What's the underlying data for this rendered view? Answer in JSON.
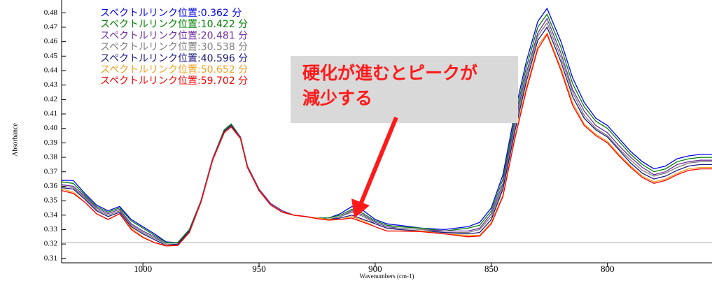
{
  "chart_data": {
    "type": "line",
    "xlabel": "Wavenumbers (cm-1)",
    "ylabel": "Absorbance",
    "xlim": [
      1035,
      755
    ],
    "ylim": [
      0.307,
      0.484
    ],
    "xticks": [
      1000,
      950,
      900,
      850,
      800
    ],
    "yticks": [
      0.31,
      0.32,
      0.33,
      0.34,
      0.35,
      0.36,
      0.37,
      0.38,
      0.39,
      {
        "value": 0.4,
        "label": "0.40"
      },
      0.41,
      0.42,
      0.43,
      0.44,
      0.45,
      0.46,
      0.47,
      0.48
    ],
    "reference_line": 0.321,
    "annotation": {
      "lines": [
        "硬化が進むとピークが",
        "減少する"
      ]
    },
    "x": [
      1035,
      1030,
      1025,
      1020,
      1015,
      1010,
      1005,
      1000,
      995,
      990,
      985,
      980,
      975,
      970,
      965,
      962,
      958,
      955,
      950,
      945,
      940,
      935,
      930,
      925,
      920,
      915,
      910,
      905,
      900,
      895,
      890,
      880,
      870,
      860,
      855,
      850,
      845,
      840,
      835,
      830,
      826,
      820,
      815,
      810,
      805,
      800,
      795,
      790,
      785,
      780,
      775,
      770,
      765,
      760,
      755
    ],
    "series": [
      {
        "name": "スペクトルリンク位置:0.362 分",
        "color": "#0000ee",
        "values": [
          0.364,
          0.364,
          0.355,
          0.347,
          0.343,
          0.346,
          0.337,
          0.332,
          0.327,
          0.3215,
          0.321,
          0.33,
          0.35,
          0.379,
          0.399,
          0.403,
          0.394,
          0.374,
          0.358,
          0.348,
          0.343,
          0.34,
          0.339,
          0.338,
          0.338,
          0.341,
          0.346,
          0.343,
          0.337,
          0.334,
          0.333,
          0.331,
          0.33,
          0.332,
          0.335,
          0.345,
          0.368,
          0.41,
          0.446,
          0.474,
          0.483,
          0.46,
          0.435,
          0.418,
          0.407,
          0.402,
          0.393,
          0.384,
          0.377,
          0.372,
          0.374,
          0.379,
          0.381,
          0.382,
          0.382
        ]
      },
      {
        "name": "スペクトルリンク位置:10.422 分",
        "color": "#008000",
        "values": [
          0.363,
          0.362,
          0.354,
          0.346,
          0.342,
          0.345,
          0.336,
          0.331,
          0.326,
          0.321,
          0.321,
          0.33,
          0.35,
          0.379,
          0.399,
          0.403,
          0.394,
          0.374,
          0.358,
          0.348,
          0.343,
          0.34,
          0.339,
          0.338,
          0.338,
          0.34,
          0.344,
          0.341,
          0.336,
          0.333,
          0.332,
          0.331,
          0.329,
          0.331,
          0.333,
          0.343,
          0.365,
          0.406,
          0.442,
          0.47,
          0.479,
          0.456,
          0.431,
          0.415,
          0.405,
          0.4,
          0.391,
          0.382,
          0.375,
          0.37,
          0.372,
          0.377,
          0.379,
          0.38,
          0.38
        ]
      },
      {
        "name": "スペクトルリンク位置:20.481 分",
        "color": "#7030a0",
        "values": [
          0.361,
          0.36,
          0.353,
          0.345,
          0.341,
          0.344,
          0.334,
          0.329,
          0.325,
          0.32,
          0.32,
          0.329,
          0.35,
          0.379,
          0.398,
          0.402,
          0.394,
          0.374,
          0.358,
          0.348,
          0.343,
          0.34,
          0.339,
          0.338,
          0.337,
          0.339,
          0.343,
          0.34,
          0.335,
          0.332,
          0.331,
          0.33,
          0.329,
          0.329,
          0.331,
          0.341,
          0.362,
          0.403,
          0.438,
          0.466,
          0.476,
          0.452,
          0.427,
          0.412,
          0.402,
          0.397,
          0.388,
          0.38,
          0.373,
          0.368,
          0.37,
          0.375,
          0.377,
          0.378,
          0.378
        ]
      },
      {
        "name": "スペクトルリンク位置:30.538 分",
        "color": "#7f7f7f",
        "values": [
          0.36,
          0.359,
          0.352,
          0.344,
          0.34,
          0.343,
          0.333,
          0.328,
          0.324,
          0.32,
          0.32,
          0.329,
          0.349,
          0.378,
          0.398,
          0.402,
          0.393,
          0.373,
          0.357,
          0.347,
          0.342,
          0.34,
          0.339,
          0.338,
          0.337,
          0.339,
          0.342,
          0.339,
          0.334,
          0.331,
          0.331,
          0.33,
          0.328,
          0.328,
          0.33,
          0.339,
          0.36,
          0.4,
          0.435,
          0.464,
          0.473,
          0.449,
          0.425,
          0.409,
          0.4,
          0.395,
          0.386,
          0.378,
          0.371,
          0.367,
          0.369,
          0.373,
          0.376,
          0.377,
          0.377
        ]
      },
      {
        "name": "スペクトルリンク位置:40.596 分",
        "color": "#1a1a80",
        "values": [
          0.359,
          0.358,
          0.351,
          0.343,
          0.339,
          0.342,
          0.332,
          0.327,
          0.323,
          0.319,
          0.32,
          0.329,
          0.349,
          0.378,
          0.398,
          0.402,
          0.393,
          0.373,
          0.357,
          0.347,
          0.342,
          0.34,
          0.339,
          0.338,
          0.337,
          0.338,
          0.34,
          0.337,
          0.334,
          0.331,
          0.33,
          0.329,
          0.328,
          0.327,
          0.328,
          0.337,
          0.358,
          0.397,
          0.432,
          0.461,
          0.47,
          0.446,
          0.422,
          0.407,
          0.399,
          0.394,
          0.385,
          0.376,
          0.369,
          0.365,
          0.367,
          0.371,
          0.374,
          0.375,
          0.375
        ]
      },
      {
        "name": "スペクトルリンク位置:50.652 分",
        "color": "#f0a020",
        "values": [
          0.358,
          0.356,
          0.349,
          0.341,
          0.337,
          0.341,
          0.331,
          0.325,
          0.321,
          0.319,
          0.319,
          0.328,
          0.349,
          0.378,
          0.397,
          0.401,
          0.393,
          0.373,
          0.357,
          0.347,
          0.342,
          0.34,
          0.339,
          0.338,
          0.337,
          0.337,
          0.339,
          0.336,
          0.332,
          0.329,
          0.329,
          0.329,
          0.327,
          0.326,
          0.326,
          0.335,
          0.354,
          0.393,
          0.428,
          0.457,
          0.466,
          0.442,
          0.418,
          0.403,
          0.396,
          0.391,
          0.382,
          0.374,
          0.367,
          0.363,
          0.365,
          0.369,
          0.372,
          0.373,
          0.373
        ]
      },
      {
        "name": "スペクトルリンク位置:59.702 分",
        "color": "#ff0000",
        "values": [
          0.357,
          0.355,
          0.349,
          0.341,
          0.337,
          0.341,
          0.33,
          0.3245,
          0.321,
          0.3187,
          0.319,
          0.328,
          0.349,
          0.378,
          0.397,
          0.401,
          0.393,
          0.373,
          0.357,
          0.347,
          0.342,
          0.34,
          0.339,
          0.3375,
          0.3365,
          0.337,
          0.338,
          0.335,
          0.332,
          0.329,
          0.329,
          0.3285,
          0.327,
          0.325,
          0.3255,
          0.334,
          0.353,
          0.392,
          0.426,
          0.455,
          0.465,
          0.44,
          0.416,
          0.402,
          0.395,
          0.39,
          0.381,
          0.373,
          0.366,
          0.362,
          0.364,
          0.368,
          0.371,
          0.372,
          0.372
        ]
      }
    ]
  }
}
